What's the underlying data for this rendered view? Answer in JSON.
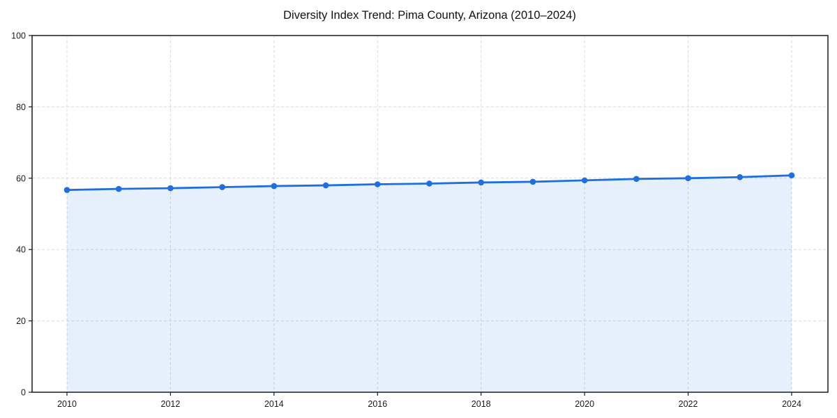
{
  "chart_data": {
    "type": "line",
    "title": "Diversity Index Trend: Pima County, Arizona (2010–2024)",
    "x": [
      2010,
      2011,
      2012,
      2013,
      2014,
      2015,
      2016,
      2017,
      2018,
      2019,
      2020,
      2021,
      2022,
      2023,
      2024
    ],
    "series": [
      {
        "name": "Diversity Index",
        "values": [
          56.7,
          57.0,
          57.2,
          57.5,
          57.8,
          58.0,
          58.3,
          58.5,
          58.8,
          59.0,
          59.4,
          59.8,
          60.0,
          60.3,
          60.8
        ]
      }
    ],
    "xlabel": "",
    "ylabel": "",
    "ylim": [
      0,
      100
    ],
    "yticks": [
      0,
      20,
      40,
      60,
      80,
      100
    ],
    "xticks": [
      2010,
      2012,
      2014,
      2016,
      2018,
      2020,
      2022,
      2024
    ],
    "grid": true,
    "grid_style": "dashed",
    "legend_position": "none",
    "line_color": "#1f6fe0",
    "area_fill": true,
    "area_opacity": 0.11,
    "marker": "circle",
    "plot_border_color": "#1a1a1a",
    "background_color": "#ffffff"
  }
}
